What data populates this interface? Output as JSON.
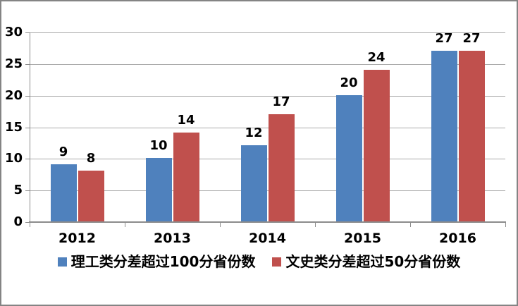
{
  "chart": {
    "background": "#FFFFFF",
    "border_color": "#848484",
    "gridline_color": "#AAAAAA",
    "axis_color": "#8C8C8C",
    "label_color": "#000000"
  },
  "chart_data": {
    "type": "bar",
    "title": "",
    "categories": [
      "2012",
      "2013",
      "2014",
      "2015",
      "2016"
    ],
    "series": [
      {
        "name": "理工类分差超过100分省份数",
        "color": "#4F81BD",
        "values": [
          9,
          10,
          12,
          20,
          27
        ]
      },
      {
        "name": "文史类分差超过50分省份数",
        "color": "#C0504D",
        "values": [
          8,
          14,
          17,
          24,
          27
        ]
      }
    ],
    "ylim": [
      0,
      30
    ],
    "ytick_step": 5,
    "yticks": [
      0,
      5,
      10,
      15,
      20,
      25,
      30
    ],
    "grid": true,
    "data_labels": true,
    "legend_position": "bottom"
  }
}
